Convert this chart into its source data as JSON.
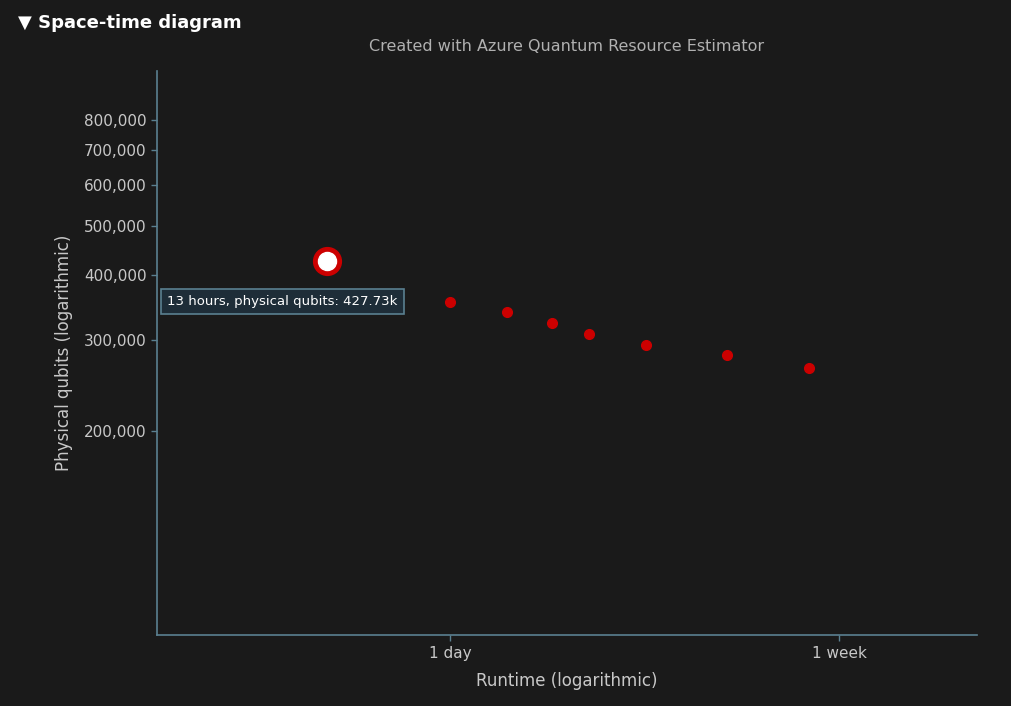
{
  "title": "Created with Azure Quantum Resource Estimator",
  "xlabel": "Runtime (logarithmic)",
  "ylabel": "Physical qubits (logarithmic)",
  "header_text": "▼ Space-time diagram",
  "background_color": "#1a1a1a",
  "plot_bg_color": "#1a1a1a",
  "header_bg_color": "#2b2b2b",
  "text_color": "#c8c8c8",
  "axis_color": "#5a8090",
  "title_color": "#b0b0b0",
  "dot_color": "#cc0000",
  "highlight_dot_color": "#ffffff",
  "highlight_ring_color": "#cc0000",
  "tooltip_text": "13 hours, physical qubits: 427.73k",
  "tooltip_bg": "#1e2d38",
  "tooltip_border": "#5a8090",
  "x_seconds": [
    46800,
    86400,
    115200,
    144000,
    172800,
    230400,
    345600,
    518400
  ],
  "y_qubits": [
    427730,
    355000,
    340000,
    323000,
    308000,
    293000,
    280000,
    265000
  ],
  "highlight_index": 0,
  "x_tick_positions_seconds": [
    86400,
    604800
  ],
  "x_tick_labels": [
    "1 day",
    "1 week"
  ],
  "y_tick_positions": [
    200000,
    300000,
    400000,
    500000,
    600000,
    700000,
    800000
  ],
  "y_tick_labels": [
    "200,000",
    "300,000",
    "400,000",
    "500,000",
    "600,000",
    "700,000",
    "800,000"
  ],
  "xlim_seconds": [
    20000,
    1200000
  ],
  "ylim_qubits": [
    80000,
    1000000
  ]
}
